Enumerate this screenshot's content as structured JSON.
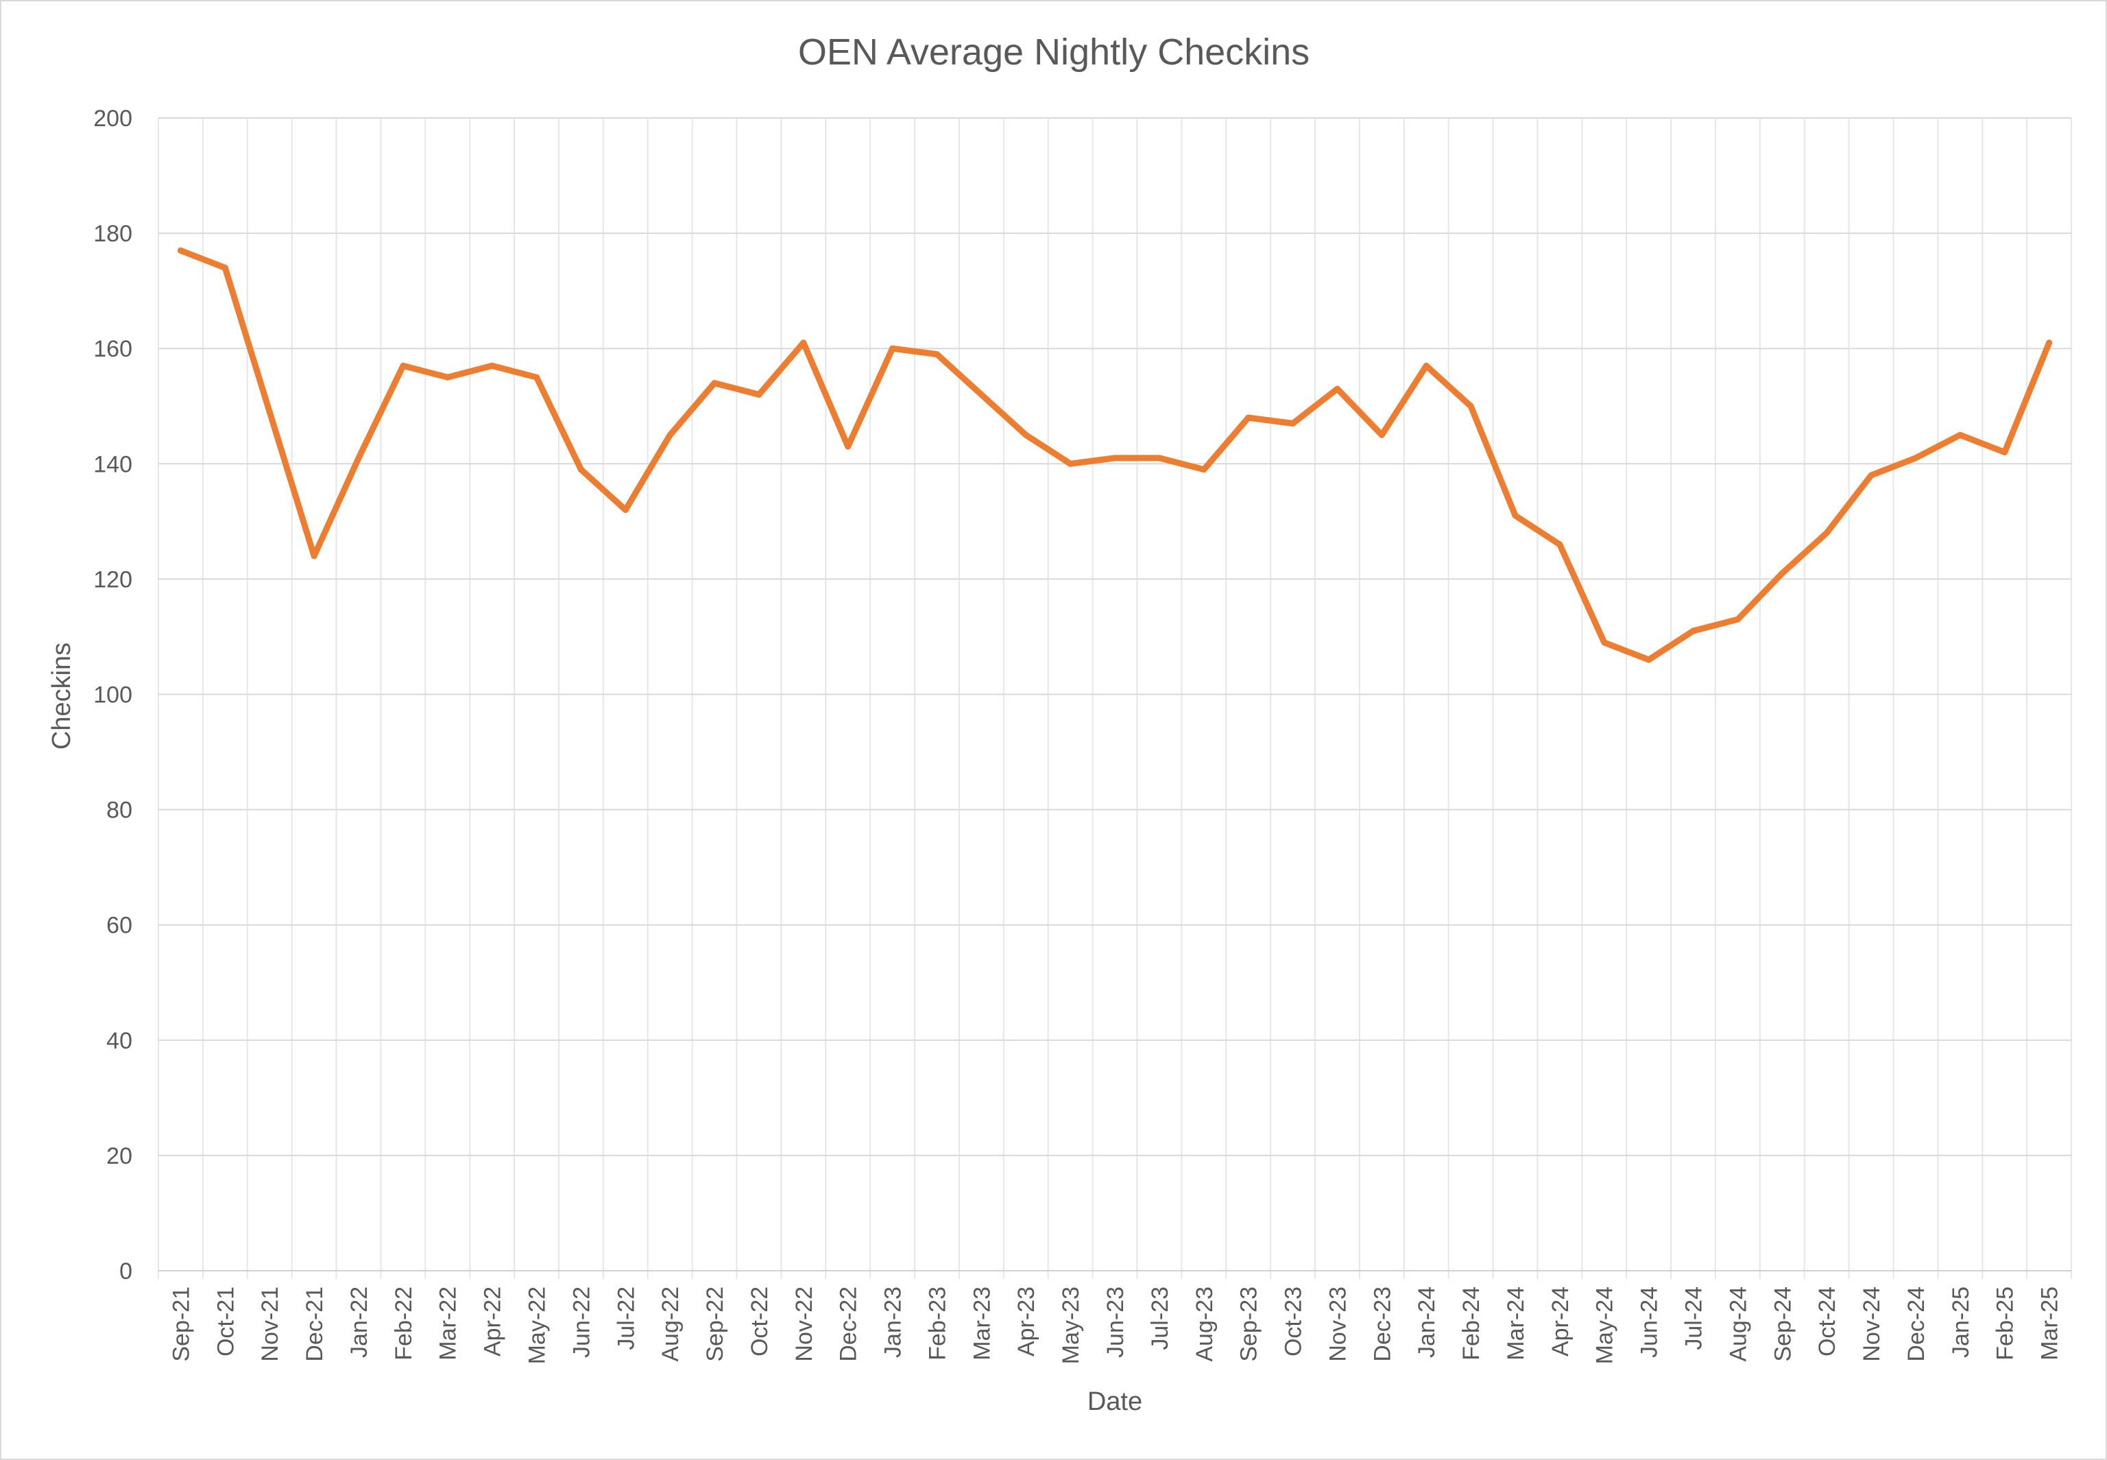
{
  "chart_data": {
    "type": "line",
    "title": "OEN Average Nightly Checkins",
    "xlabel": "Date",
    "ylabel": "Checkins",
    "ylim": [
      0,
      200
    ],
    "yticks": [
      0,
      20,
      40,
      60,
      80,
      100,
      120,
      140,
      160,
      180,
      200
    ],
    "grid": true,
    "legend": "none",
    "categories": [
      "Sep-21",
      "Oct-21",
      "Nov-21",
      "Dec-21",
      "Jan-22",
      "Feb-22",
      "Mar-22",
      "Apr-22",
      "May-22",
      "Jun-22",
      "Jul-22",
      "Aug-22",
      "Sep-22",
      "Oct-22",
      "Nov-22",
      "Dec-22",
      "Jan-23",
      "Feb-23",
      "Mar-23",
      "Apr-23",
      "May-23",
      "Jun-23",
      "Jul-23",
      "Aug-23",
      "Sep-23",
      "Oct-23",
      "Nov-23",
      "Dec-23",
      "Jan-24",
      "Feb-24",
      "Mar-24",
      "Apr-24",
      "May-24",
      "Jun-24",
      "Jul-24",
      "Aug-24",
      "Sep-24",
      "Oct-24",
      "Nov-24",
      "Dec-24",
      "Jan-25",
      "Feb-25",
      "Mar-25"
    ],
    "series": [
      {
        "color": "#ED7D31",
        "values": [
          177,
          174,
          149,
          124,
          141,
          157,
          155,
          157,
          155,
          139,
          132,
          145,
          154,
          152,
          161,
          143,
          160,
          159,
          152,
          145,
          140,
          141,
          141,
          139,
          148,
          147,
          153,
          145,
          157,
          150,
          131,
          126,
          109,
          106,
          111,
          113,
          121,
          128,
          138,
          141,
          145,
          142,
          161
        ]
      }
    ]
  }
}
